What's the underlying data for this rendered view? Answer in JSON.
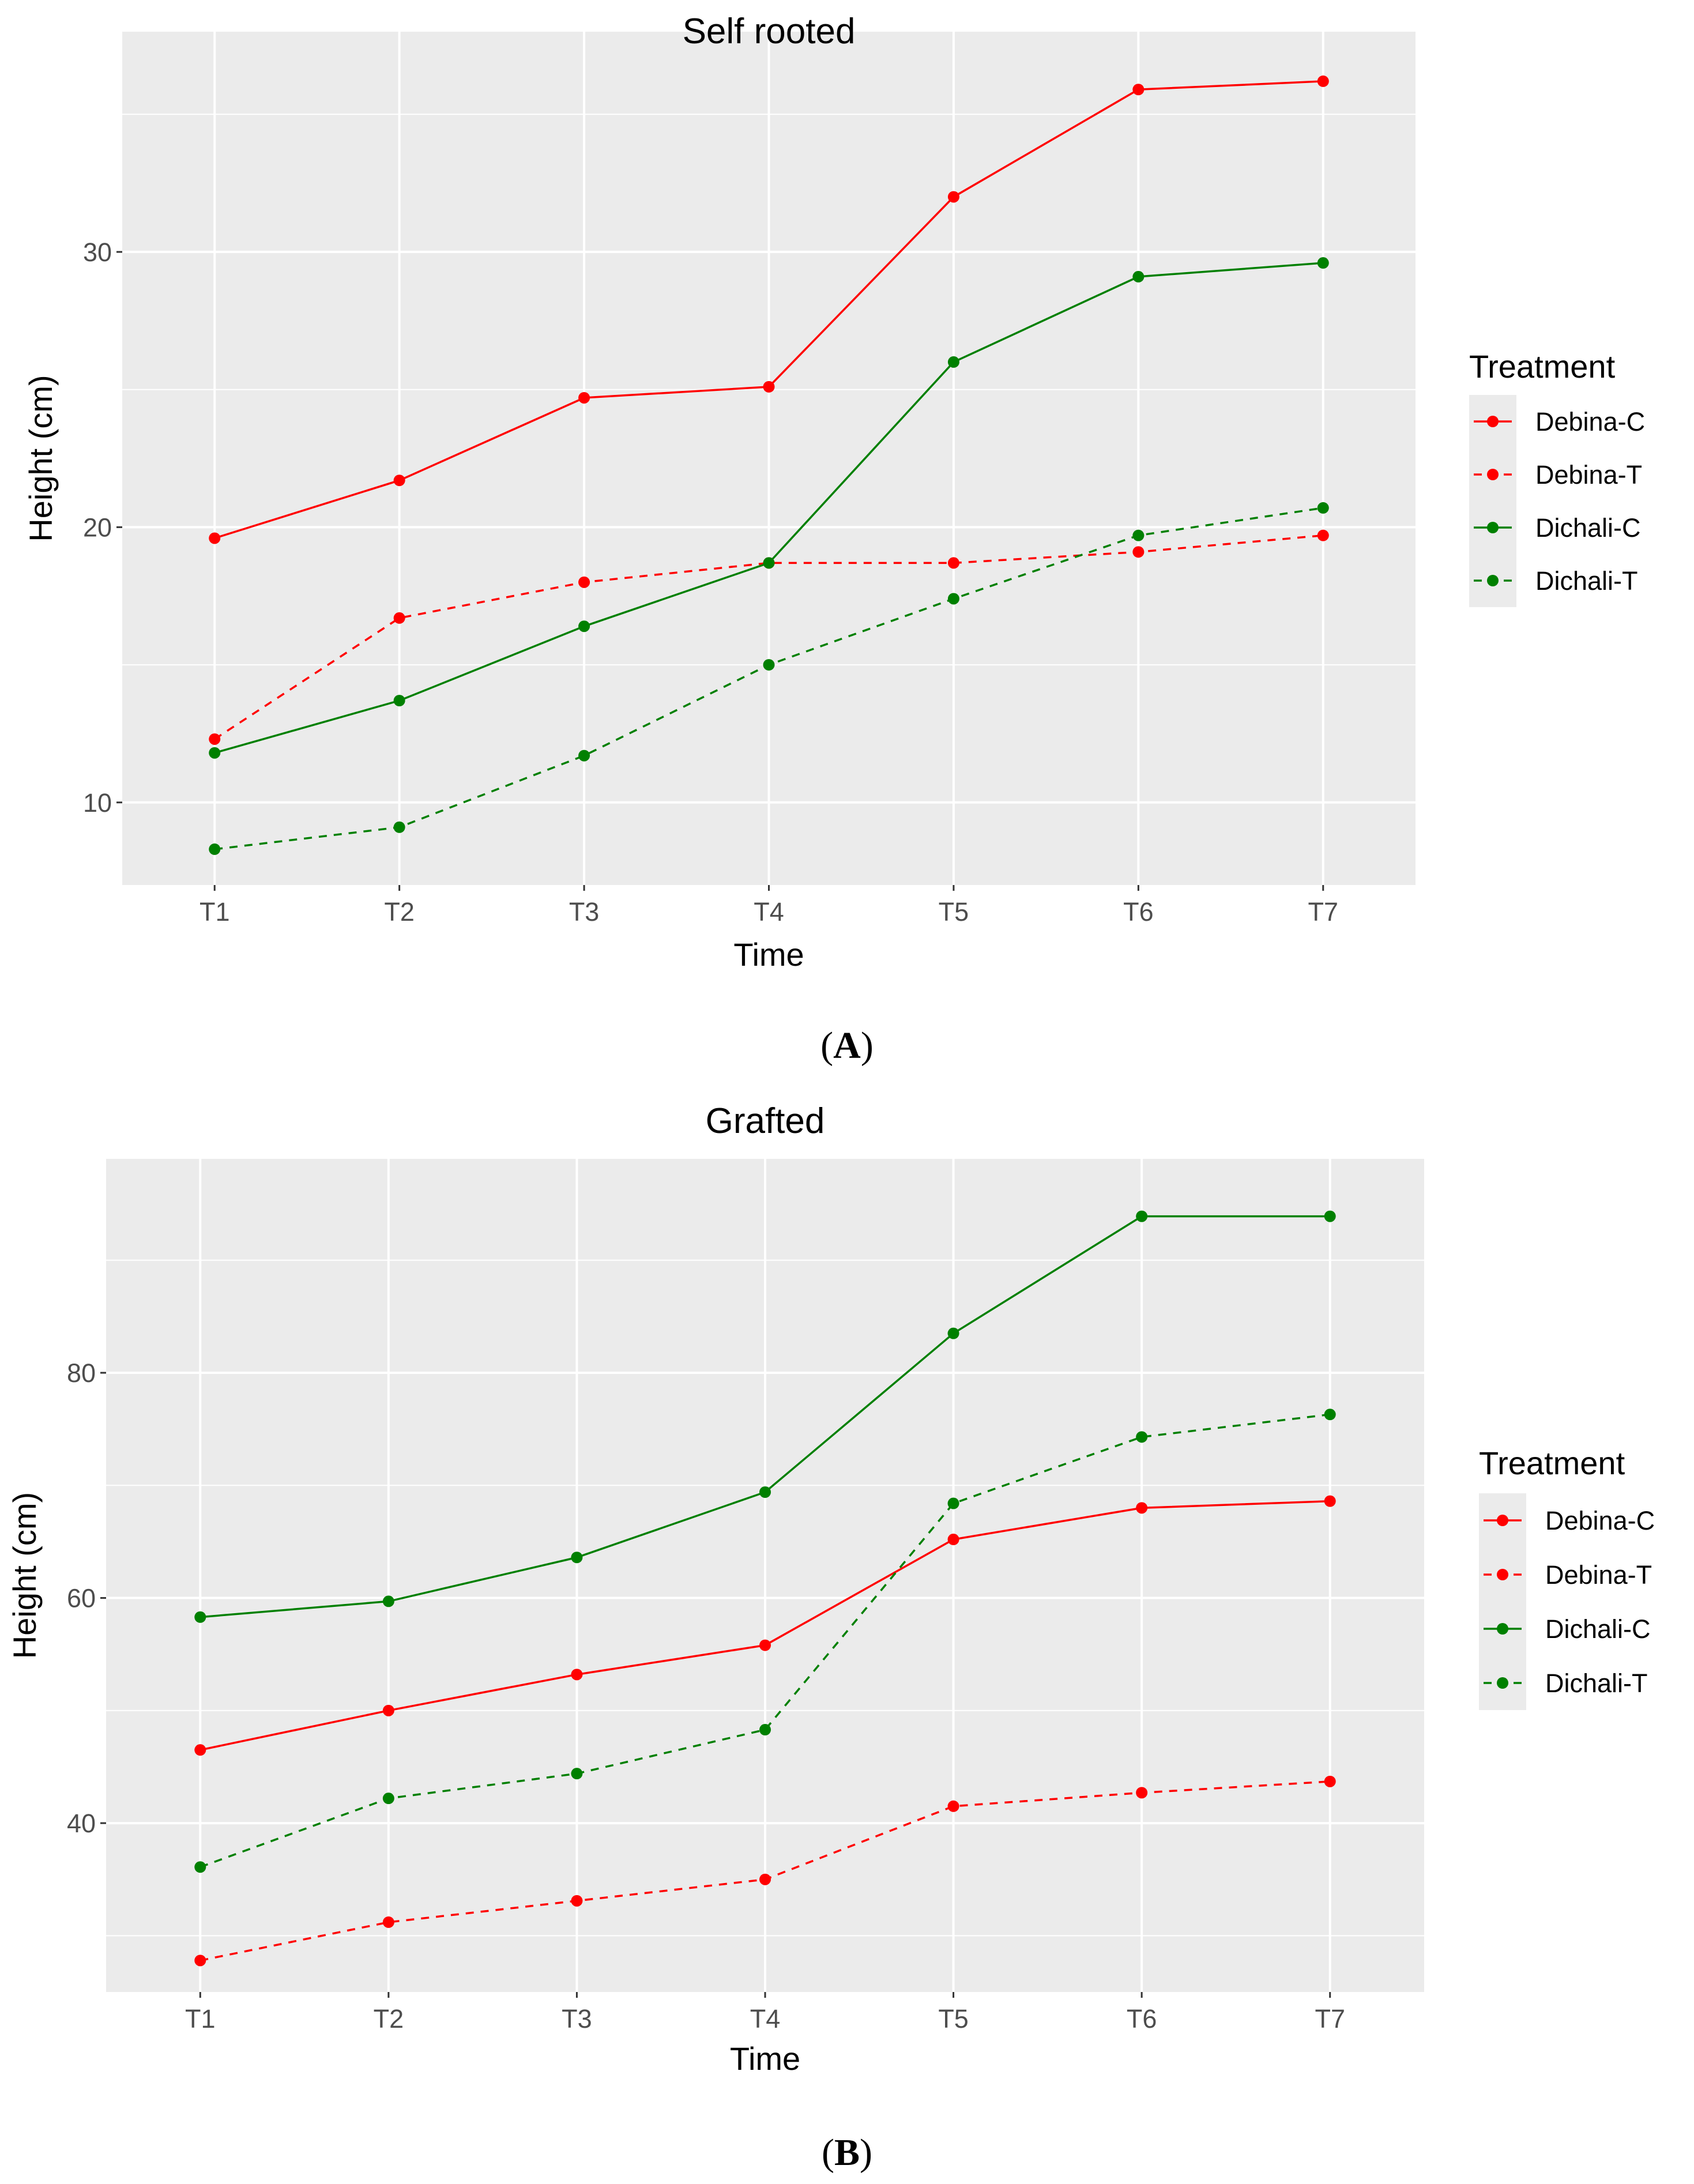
{
  "chart_data": [
    {
      "type": "line",
      "panel_label": "A",
      "title": "Self rooted",
      "xlabel": "Time",
      "ylabel": "Height (cm)",
      "categories": [
        "T1",
        "T2",
        "T3",
        "T4",
        "T5",
        "T6",
        "T7"
      ],
      "ylim": [
        7,
        38
      ],
      "yticks": [
        10,
        20,
        30
      ],
      "grid": true,
      "legend": {
        "title": "Treatment",
        "position": "right"
      },
      "series": [
        {
          "name": "Debina-C",
          "color": "#ff0000",
          "linetype": "solid",
          "values": [
            19.6,
            21.7,
            24.7,
            25.1,
            32.0,
            35.9,
            36.2
          ]
        },
        {
          "name": "Debina-T",
          "color": "#ff0000",
          "linetype": "dashed",
          "values": [
            12.3,
            16.7,
            18.0,
            18.7,
            18.7,
            19.1,
            19.7
          ]
        },
        {
          "name": "Dichali-C",
          "color": "#008000",
          "linetype": "solid",
          "values": [
            11.8,
            13.7,
            16.4,
            18.7,
            26.0,
            29.1,
            29.6
          ]
        },
        {
          "name": "Dichali-T",
          "color": "#008000",
          "linetype": "dashed",
          "values": [
            8.3,
            9.1,
            11.7,
            15.0,
            17.4,
            19.7,
            20.7
          ]
        }
      ]
    },
    {
      "type": "line",
      "panel_label": "B",
      "title": "Grafted",
      "xlabel": "Time",
      "ylabel": "Height (cm)",
      "categories": [
        "T1",
        "T2",
        "T3",
        "T4",
        "T5",
        "T6",
        "T7"
      ],
      "ylim": [
        25,
        99
      ],
      "yticks": [
        40,
        60,
        80
      ],
      "grid": true,
      "legend": {
        "title": "Treatment",
        "position": "right"
      },
      "series": [
        {
          "name": "Debina-C",
          "color": "#ff0000",
          "linetype": "solid",
          "values": [
            46.5,
            50.0,
            53.2,
            55.8,
            65.2,
            68.0,
            68.6
          ]
        },
        {
          "name": "Debina-T",
          "color": "#ff0000",
          "linetype": "dashed",
          "values": [
            27.8,
            31.2,
            33.1,
            35.0,
            41.5,
            42.7,
            43.7
          ]
        },
        {
          "name": "Dichali-C",
          "color": "#008000",
          "linetype": "solid",
          "values": [
            58.3,
            59.7,
            63.6,
            69.4,
            83.5,
            93.9,
            93.9
          ]
        },
        {
          "name": "Dichali-T",
          "color": "#008000",
          "linetype": "dashed",
          "values": [
            36.1,
            42.2,
            44.4,
            48.3,
            68.4,
            74.3,
            76.3
          ]
        }
      ]
    }
  ]
}
